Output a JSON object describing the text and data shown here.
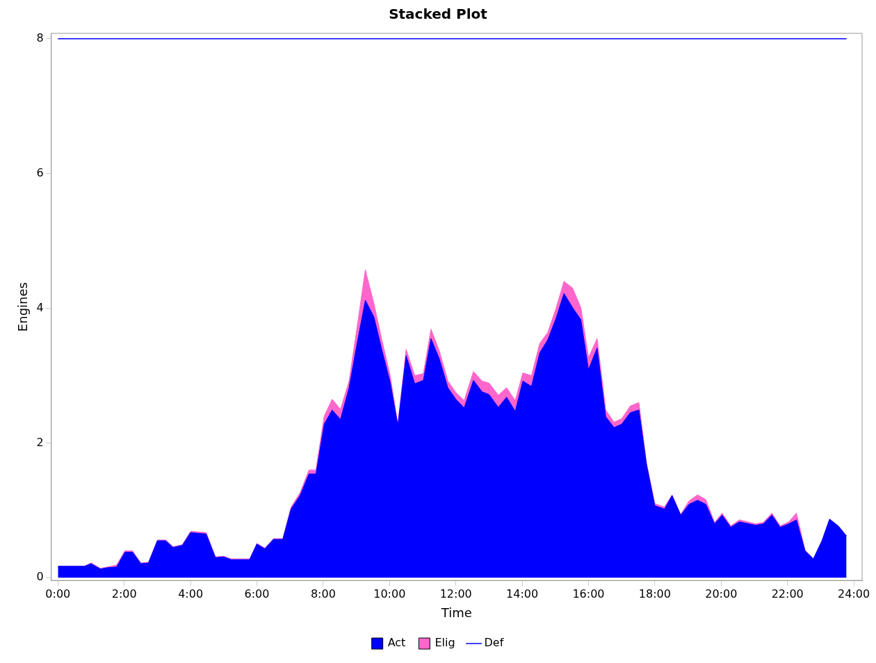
{
  "chart_data": {
    "type": "area",
    "title": "Stacked Plot",
    "xlabel": "Time",
    "ylabel": "Engines",
    "stacked": true,
    "legend": "bottom",
    "grid": false,
    "marker": "none",
    "x": [
      0,
      0.8,
      1.0,
      1.28,
      1.5,
      1.77,
      2.02,
      2.25,
      2.5,
      2.73,
      3.0,
      3.25,
      3.47,
      3.75,
      4.0,
      4.47,
      4.75,
      5.0,
      5.22,
      5.78,
      6.0,
      6.24,
      6.5,
      6.78,
      7.03,
      7.3,
      7.57,
      7.78,
      8.03,
      8.27,
      8.52,
      8.78,
      9.03,
      9.27,
      9.53,
      9.76,
      10.02,
      10.25,
      10.5,
      10.76,
      11.02,
      11.25,
      11.5,
      11.76,
      12.0,
      12.25,
      12.53,
      12.79,
      13.0,
      13.28,
      13.53,
      13.79,
      14.02,
      14.28,
      14.53,
      14.77,
      15.02,
      15.26,
      15.52,
      15.77,
      16.0,
      16.26,
      16.52,
      16.77,
      17.0,
      17.26,
      17.52,
      17.75,
      18.0,
      18.29,
      18.52,
      18.78,
      19.03,
      19.29,
      19.54,
      19.8,
      20.03,
      20.29,
      20.55,
      21.04,
      21.27,
      21.53,
      21.78,
      22.04,
      22.27,
      22.53,
      22.78,
      23.04,
      23.27,
      23.53,
      23.78
    ],
    "series": [
      {
        "name": "Act",
        "color": "#0000ff",
        "values": [
          0.17,
          0.17,
          0.21,
          0.13,
          0.15,
          0.16,
          0.38,
          0.38,
          0.21,
          0.22,
          0.55,
          0.55,
          0.45,
          0.48,
          0.67,
          0.65,
          0.3,
          0.31,
          0.27,
          0.27,
          0.5,
          0.43,
          0.57,
          0.57,
          1.02,
          1.22,
          1.54,
          1.54,
          2.28,
          2.49,
          2.35,
          2.82,
          3.5,
          4.12,
          3.87,
          3.4,
          2.9,
          2.26,
          3.3,
          2.88,
          2.93,
          3.55,
          3.25,
          2.82,
          2.65,
          2.52,
          2.93,
          2.76,
          2.72,
          2.53,
          2.68,
          2.47,
          2.92,
          2.84,
          3.34,
          3.53,
          3.85,
          4.22,
          4.01,
          3.83,
          3.09,
          3.41,
          2.39,
          2.23,
          2.28,
          2.45,
          2.49,
          1.68,
          1.07,
          1.02,
          1.22,
          0.93,
          1.09,
          1.15,
          1.09,
          0.8,
          0.93,
          0.75,
          0.83,
          0.78,
          0.8,
          0.93,
          0.75,
          0.8,
          0.86,
          0.4,
          0.28,
          0.55,
          0.87,
          0.77,
          0.62
        ]
      },
      {
        "name": "Elig",
        "color": "#ff66cc",
        "values": [
          0,
          0,
          0.01,
          0.01,
          0.01,
          0.03,
          0.02,
          0.02,
          0.01,
          0.01,
          0.01,
          0.01,
          0.01,
          0.01,
          0.02,
          0.02,
          0.01,
          0.01,
          0.01,
          0.01,
          0.01,
          0.01,
          0.01,
          0.01,
          0.03,
          0.04,
          0.06,
          0.06,
          0.12,
          0.16,
          0.15,
          0.1,
          0.25,
          0.45,
          0.2,
          0.15,
          0.1,
          0.02,
          0.09,
          0.12,
          0.1,
          0.14,
          0.12,
          0.1,
          0.1,
          0.11,
          0.13,
          0.16,
          0.17,
          0.18,
          0.14,
          0.16,
          0.12,
          0.16,
          0.14,
          0.11,
          0.15,
          0.18,
          0.29,
          0.18,
          0.18,
          0.14,
          0.1,
          0.08,
          0.08,
          0.1,
          0.11,
          0.02,
          0.03,
          0.03,
          0.01,
          0.01,
          0.05,
          0.08,
          0.07,
          0.02,
          0.03,
          0.02,
          0.03,
          0.02,
          0.02,
          0.03,
          0.02,
          0.03,
          0.1,
          0.01,
          0,
          0,
          0,
          0,
          0
        ]
      },
      {
        "name": "Def",
        "type": "line",
        "color": "#0000ff",
        "line_style": "solid",
        "x": [
          0,
          23.78
        ],
        "values": [
          8,
          8
        ]
      }
    ],
    "xlim": [
      -0.2,
      24.25
    ],
    "xticks": [
      {
        "value": 0,
        "label": "0:00"
      },
      {
        "value": 2,
        "label": "2:00"
      },
      {
        "value": 4,
        "label": "4:00"
      },
      {
        "value": 6,
        "label": "6:00"
      },
      {
        "value": 8,
        "label": "8:00"
      },
      {
        "value": 10,
        "label": "10:00"
      },
      {
        "value": 12,
        "label": "12:00"
      },
      {
        "value": 14,
        "label": "14:00"
      },
      {
        "value": 16,
        "label": "16:00"
      },
      {
        "value": 18,
        "label": "18:00"
      },
      {
        "value": 20,
        "label": "20:00"
      },
      {
        "value": 22,
        "label": "22:00"
      },
      {
        "value": 24,
        "label": "24:00"
      }
    ],
    "ylim": [
      -0.04,
      8.08
    ],
    "yticks": [
      0,
      2,
      4,
      6,
      8
    ]
  }
}
